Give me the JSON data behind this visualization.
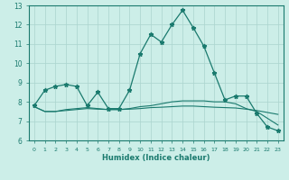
{
  "xlabel": "Humidex (Indice chaleur)",
  "background_color": "#cceee8",
  "grid_color": "#aad4ce",
  "line_color": "#1a7a6e",
  "xlim": [
    -0.5,
    23.5
  ],
  "ylim": [
    6,
    13
  ],
  "yticks": [
    6,
    7,
    8,
    9,
    10,
    11,
    12,
    13
  ],
  "xticks": [
    0,
    1,
    2,
    3,
    4,
    5,
    6,
    7,
    8,
    9,
    10,
    11,
    12,
    13,
    14,
    15,
    16,
    17,
    18,
    19,
    20,
    21,
    22,
    23
  ],
  "line1_x": [
    0,
    1,
    2,
    3,
    4,
    5,
    6,
    7,
    8,
    9,
    10,
    11,
    12,
    13,
    14,
    15,
    16,
    17,
    18,
    19,
    20,
    21,
    22,
    23
  ],
  "line1_y": [
    7.8,
    8.6,
    8.8,
    8.9,
    8.8,
    7.8,
    8.5,
    7.65,
    7.65,
    8.6,
    10.5,
    11.5,
    11.1,
    12.0,
    12.75,
    11.85,
    10.9,
    9.5,
    8.1,
    8.3,
    8.3,
    7.4,
    6.7,
    6.5
  ],
  "line2_x": [
    0,
    1,
    2,
    3,
    4,
    5,
    6,
    7,
    8,
    9,
    10,
    11,
    12,
    13,
    14,
    15,
    16,
    17,
    18,
    19,
    20,
    21,
    22,
    23
  ],
  "line2_y": [
    7.75,
    7.5,
    7.5,
    7.6,
    7.65,
    7.7,
    7.65,
    7.6,
    7.6,
    7.65,
    7.75,
    7.8,
    7.9,
    8.0,
    8.05,
    8.05,
    8.05,
    8.0,
    8.0,
    7.9,
    7.65,
    7.5,
    7.15,
    6.8
  ],
  "line3_x": [
    0,
    1,
    2,
    3,
    4,
    5,
    6,
    7,
    8,
    9,
    10,
    11,
    12,
    13,
    14,
    15,
    16,
    17,
    18,
    19,
    20,
    21,
    22,
    23
  ],
  "line3_y": [
    7.75,
    7.5,
    7.5,
    7.55,
    7.6,
    7.65,
    7.62,
    7.6,
    7.6,
    7.62,
    7.65,
    7.7,
    7.72,
    7.75,
    7.78,
    7.78,
    7.75,
    7.72,
    7.7,
    7.68,
    7.62,
    7.55,
    7.45,
    7.35
  ]
}
